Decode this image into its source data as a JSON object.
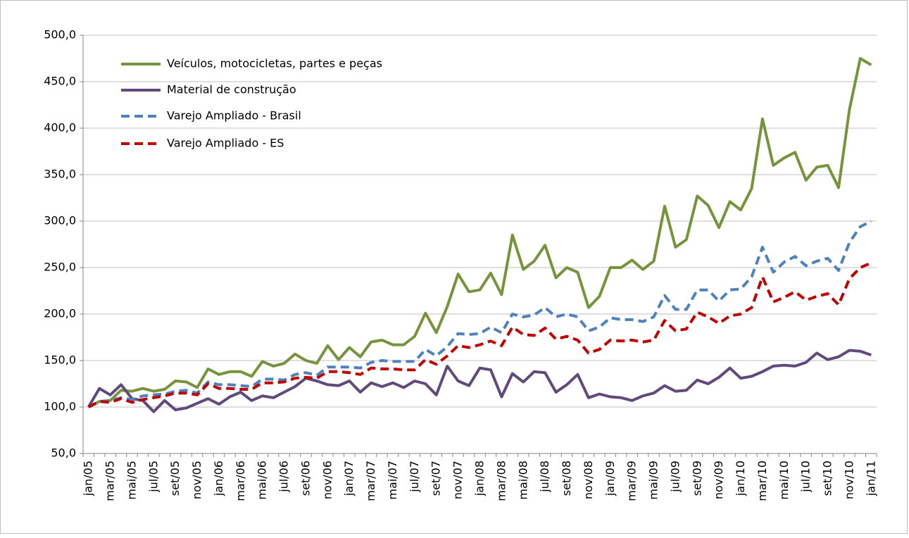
{
  "chart_data": {
    "type": "line",
    "categories": [
      "jan/05",
      null,
      "mar/05",
      null,
      "mai/05",
      null,
      "jul/05",
      null,
      "set/05",
      null,
      "nov/05",
      null,
      "jan/06",
      null,
      "mar/06",
      null,
      "mai/06",
      null,
      "jul/06",
      null,
      "set/06",
      null,
      "nov/06",
      null,
      "jan/07",
      null,
      "mar/07",
      null,
      "mai/07",
      null,
      "jul/07",
      null,
      "set/07",
      null,
      "nov/07",
      null,
      "jan/08",
      null,
      "mar/08",
      null,
      "mai/08",
      null,
      "jul/08",
      null,
      "set/08",
      null,
      "nov/08",
      null,
      "jan/09",
      null,
      "mar/09",
      null,
      "mai/09",
      null,
      "jul/09",
      null,
      "set/09",
      null,
      "nov/09",
      null,
      "jan/10",
      null,
      "mar/10",
      null,
      "mai/10",
      null,
      "jul/10",
      null,
      "set/10",
      null,
      "nov/10",
      null,
      "jan/11"
    ],
    "series": [
      {
        "name": "Veículos, motocicletas, partes e peças",
        "color": "#77933c",
        "dashed": false,
        "values": [
          100,
          106,
          107,
          118,
          117,
          120,
          117,
          119,
          128,
          127,
          121,
          141,
          135,
          138,
          138,
          133,
          149,
          144,
          147,
          157,
          150,
          147,
          166,
          151,
          164,
          154,
          170,
          172,
          167,
          167,
          176,
          201,
          180,
          208,
          243,
          224,
          226,
          244,
          221,
          285,
          248,
          257,
          274,
          239,
          250,
          245,
          207,
          219,
          250,
          250,
          258,
          248,
          257,
          316,
          272,
          280,
          327,
          317,
          293,
          321,
          312,
          335,
          410,
          360,
          368,
          374,
          344,
          358,
          360,
          336,
          420,
          475,
          468
        ]
      },
      {
        "name": "Material de construção",
        "color": "#604a7b",
        "dashed": false,
        "values": [
          100,
          120,
          113,
          124,
          109,
          107,
          95,
          107,
          97,
          99,
          104,
          109,
          103,
          111,
          116,
          107,
          112,
          110,
          116,
          122,
          131,
          128,
          124,
          123,
          128,
          116,
          126,
          122,
          126,
          121,
          128,
          125,
          113,
          144,
          128,
          123,
          142,
          140,
          111,
          136,
          127,
          138,
          137,
          116,
          124,
          135,
          110,
          114,
          111,
          110,
          107,
          112,
          115,
          123,
          117,
          118,
          129,
          125,
          132,
          142,
          131,
          133,
          138,
          144,
          145,
          144,
          148,
          158,
          151,
          154,
          161,
          160,
          156
        ]
      },
      {
        "name": "Varejo Ampliado - Brasil",
        "color": "#4f81bd",
        "dashed": true,
        "values": [
          100,
          106,
          107,
          110,
          108,
          112,
          113,
          114,
          117,
          118,
          115,
          127,
          124,
          124,
          123,
          122,
          130,
          130,
          129,
          135,
          137,
          134,
          143,
          143,
          143,
          142,
          148,
          150,
          149,
          149,
          149,
          162,
          155,
          165,
          179,
          178,
          179,
          186,
          180,
          200,
          197,
          199,
          207,
          197,
          200,
          197,
          182,
          186,
          196,
          194,
          194,
          192,
          197,
          220,
          205,
          205,
          226,
          226,
          214,
          226,
          227,
          240,
          272,
          245,
          256,
          262,
          252,
          257,
          260,
          247,
          277,
          294,
          300
        ]
      },
      {
        "name": "Varejo Ampliado - ES",
        "color": "#c00000",
        "dashed": true,
        "values": [
          100,
          106,
          105,
          109,
          105,
          108,
          110,
          112,
          115,
          115,
          113,
          125,
          120,
          120,
          119,
          119,
          126,
          126,
          127,
          131,
          132,
          131,
          138,
          138,
          137,
          135,
          142,
          141,
          141,
          140,
          140,
          151,
          146,
          155,
          166,
          164,
          167,
          171,
          166,
          186,
          178,
          177,
          185,
          173,
          176,
          172,
          158,
          162,
          172,
          171,
          172,
          170,
          172,
          193,
          182,
          184,
          202,
          197,
          190,
          198,
          200,
          207,
          240,
          213,
          218,
          224,
          215,
          219,
          222,
          210,
          238,
          250,
          255
        ]
      }
    ],
    "ylim": [
      50,
      500
    ],
    "yticks": [
      {
        "value": 50,
        "label": "50,0"
      },
      {
        "value": 100,
        "label": "100,0"
      },
      {
        "value": 150,
        "label": "150,0"
      },
      {
        "value": 200,
        "label": "200,0"
      },
      {
        "value": 250,
        "label": "250,0"
      },
      {
        "value": 300,
        "label": "300,0"
      },
      {
        "value": 350,
        "label": "350,0"
      },
      {
        "value": 400,
        "label": "400,0"
      },
      {
        "value": 450,
        "label": "450,0"
      },
      {
        "value": 500,
        "label": "500,0"
      }
    ],
    "grid": true,
    "legend": "upper-left"
  }
}
